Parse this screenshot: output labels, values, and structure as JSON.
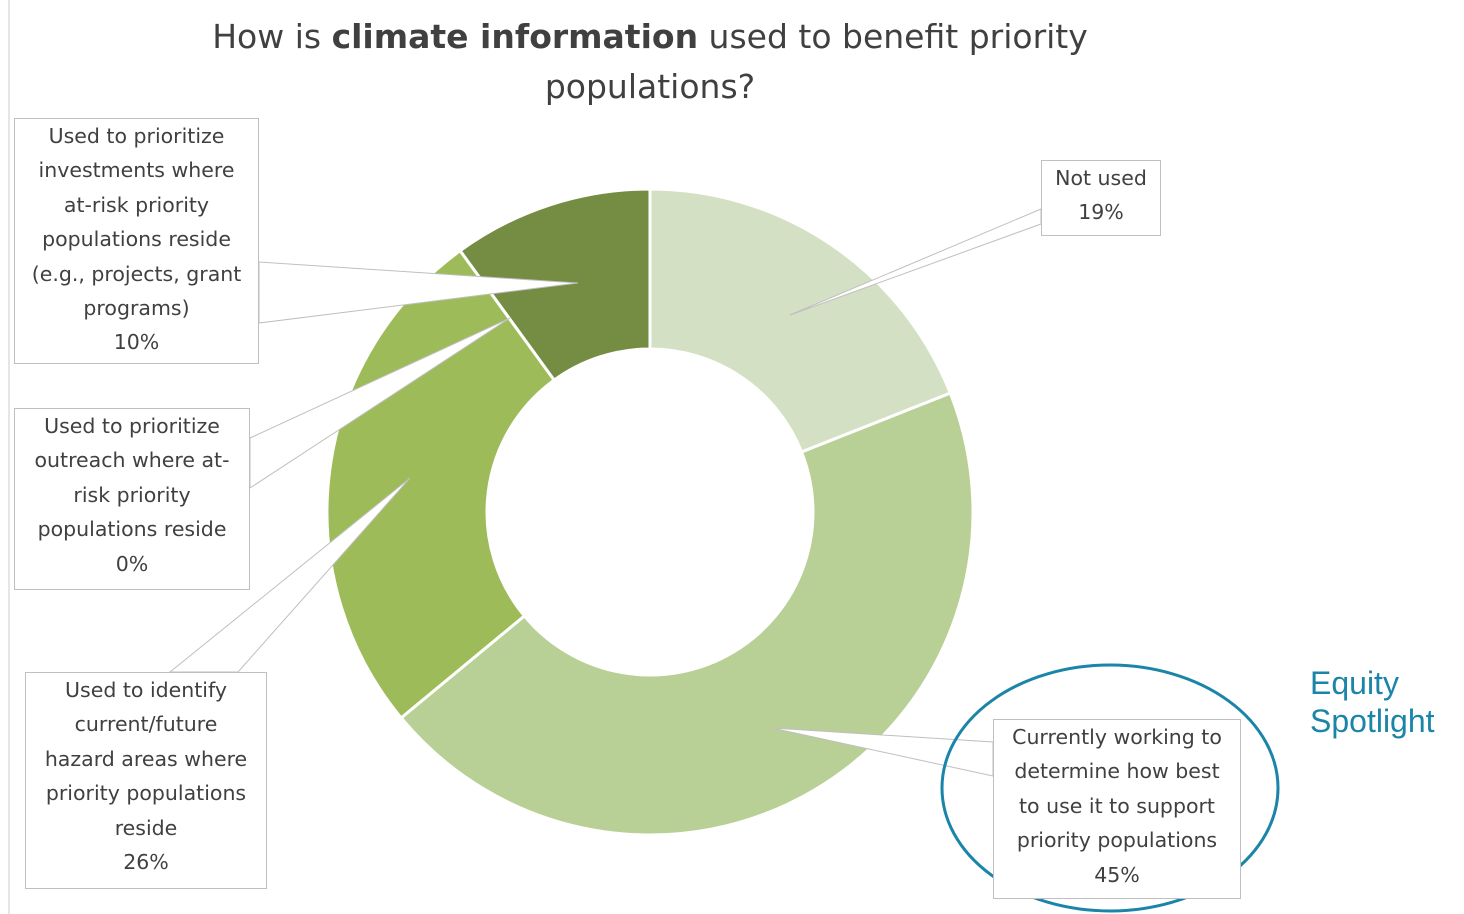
{
  "chart_data": {
    "type": "pie",
    "donut": true,
    "title_parts": [
      {
        "text": "How is ",
        "bold": false
      },
      {
        "text": "climate information",
        "bold": true
      },
      {
        "text": " used to benefit priority populations?",
        "bold": false
      }
    ],
    "slices": [
      {
        "label": "Not used",
        "value": 19,
        "value_label": "19%",
        "color": "#d3e0c3"
      },
      {
        "label": "Currently working to determine how best to use it to support priority populations",
        "value": 45,
        "value_label": "45%",
        "color": "#b8d096"
      },
      {
        "label": "Used to identify current/future hazard areas where priority populations reside",
        "value": 26,
        "value_label": "26%",
        "color": "#9dbc59"
      },
      {
        "label": "Used to prioritize outreach where at-risk priority populations reside",
        "value": 0,
        "value_label": "0%",
        "color": "#8aab4c"
      },
      {
        "label": "Used to prioritize investments where at-risk priority populations reside (e.g., projects, grant programs)",
        "value": 10,
        "value_label": "10%",
        "color": "#748d42"
      }
    ]
  },
  "callouts": {
    "investments": "Used to prioritize\ninvestments where\nat-risk priority\npopulations reside\n(e.g., projects, grant\nprograms)\n10%",
    "outreach": "Used to prioritize\noutreach where at-\nrisk priority\npopulations reside\n0%",
    "hazard": "Used to identify\ncurrent/future\nhazard areas where\npriority populations\nreside\n26%",
    "not_used": "Not used\n19%",
    "working": "Currently working to\ndetermine how best\nto use it to support\npriority populations\n45%"
  },
  "spotlight": {
    "text": "Equity\nSpotlight",
    "color": "#1a85a8"
  }
}
